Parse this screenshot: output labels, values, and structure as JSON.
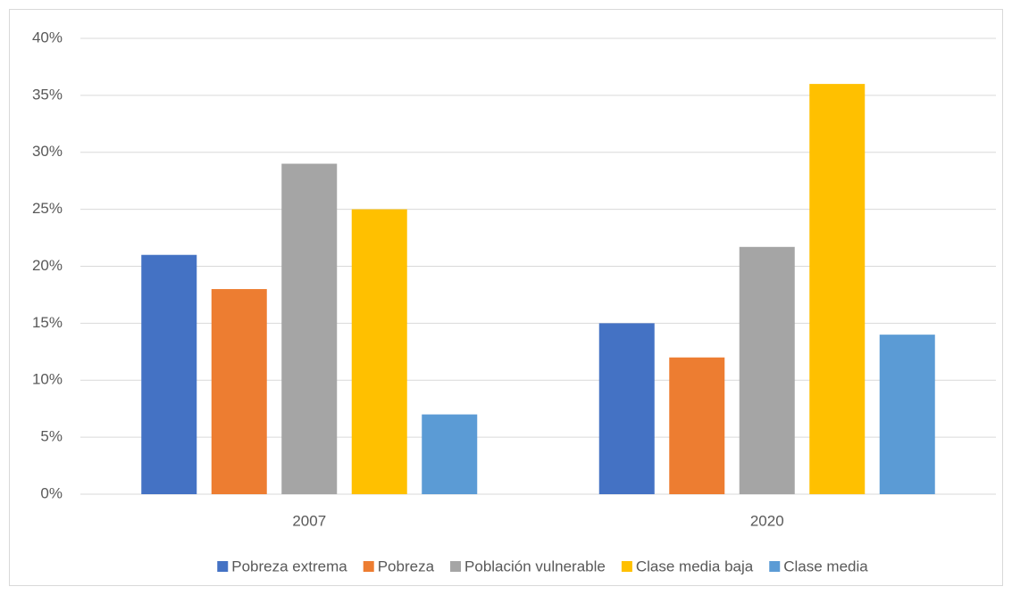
{
  "chart_data": {
    "type": "bar",
    "categories": [
      "2007",
      "2020"
    ],
    "series": [
      {
        "name": "Pobreza extrema",
        "color": "#4472c4",
        "values": [
          21,
          15
        ]
      },
      {
        "name": "Pobreza",
        "color": "#ed7d31",
        "values": [
          18,
          12
        ]
      },
      {
        "name": "Población vulnerable",
        "color": "#a5a5a5",
        "values": [
          29,
          21.7
        ]
      },
      {
        "name": "Clase media baja",
        "color": "#ffc000",
        "values": [
          25,
          36
        ]
      },
      {
        "name": "Clase media",
        "color": "#5b9bd5",
        "values": [
          7,
          14
        ]
      }
    ],
    "ylim": [
      0,
      40
    ],
    "yticks": [
      {
        "value": 0,
        "label": "0%"
      },
      {
        "value": 5,
        "label": "5%"
      },
      {
        "value": 10,
        "label": "10%"
      },
      {
        "value": 15,
        "label": "15%"
      },
      {
        "value": 20,
        "label": "20%"
      },
      {
        "value": 25,
        "label": "25%"
      },
      {
        "value": 30,
        "label": "30%"
      },
      {
        "value": 35,
        "label": "35%"
      },
      {
        "value": 40,
        "label": "40%"
      }
    ],
    "grid": true,
    "legend": "bottom"
  }
}
